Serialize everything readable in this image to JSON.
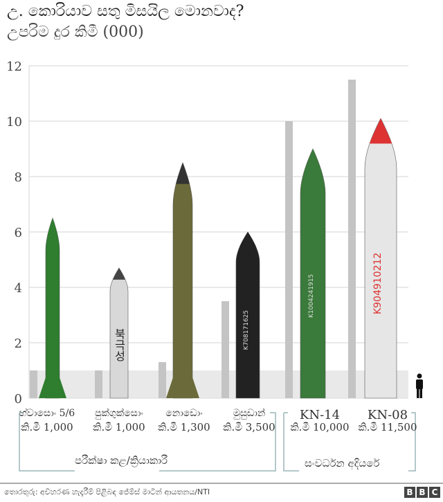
{
  "title": "උ. කොරියාව සතු මිසයිල මොනවාද?",
  "subtitle": "උපරිම දුර කිමී (000)",
  "chart_data": {
    "type": "bar",
    "title": "උ. කොරියාව සතු මිසයිල මොනවාද?",
    "ylabel": "උපරිම දුර කිමී (000)",
    "ylim": [
      0,
      12
    ],
    "yticks": [
      "0",
      "2",
      "4",
      "6",
      "8",
      "10",
      "12"
    ],
    "grid": true,
    "categories": [
      "හ්වාසොං 5/6",
      "පුක්ගුක්සොං",
      "නොඩොං",
      "මුසුඩාන්",
      "KN-14",
      "KN-08"
    ],
    "range_labels": [
      "කි.මී 1,000",
      "කි.මී 1,000",
      "කි.මී 1,300",
      "කි.මී 3,500",
      "කි.මී 10,000",
      "කි.මී 11,500"
    ],
    "values": [
      1.0,
      1.0,
      1.3,
      3.5,
      10.0,
      11.5
    ],
    "bar_color": "#c4c4c4",
    "groups": [
      {
        "label": "පරීක්ෂා කළ/ක්‍රියාකාරී",
        "members": [
          0,
          1,
          2,
          3
        ]
      },
      {
        "label": "සංවර්ධන අදියරේ",
        "members": [
          4,
          5
        ]
      }
    ],
    "missile_markings": {
      "pukguksong": "북극성",
      "musudan": "K708171625",
      "kn14": "K1004241915",
      "kn08": "K904910212"
    },
    "scale_icon": "person-icon"
  },
  "source": "තොරතුරු: අවිහරණ හැදෑරීම් පිළිබඳ ජේම්ස් මාටින් ආයතනය/NTI",
  "logo": [
    "B",
    "B",
    "C"
  ]
}
